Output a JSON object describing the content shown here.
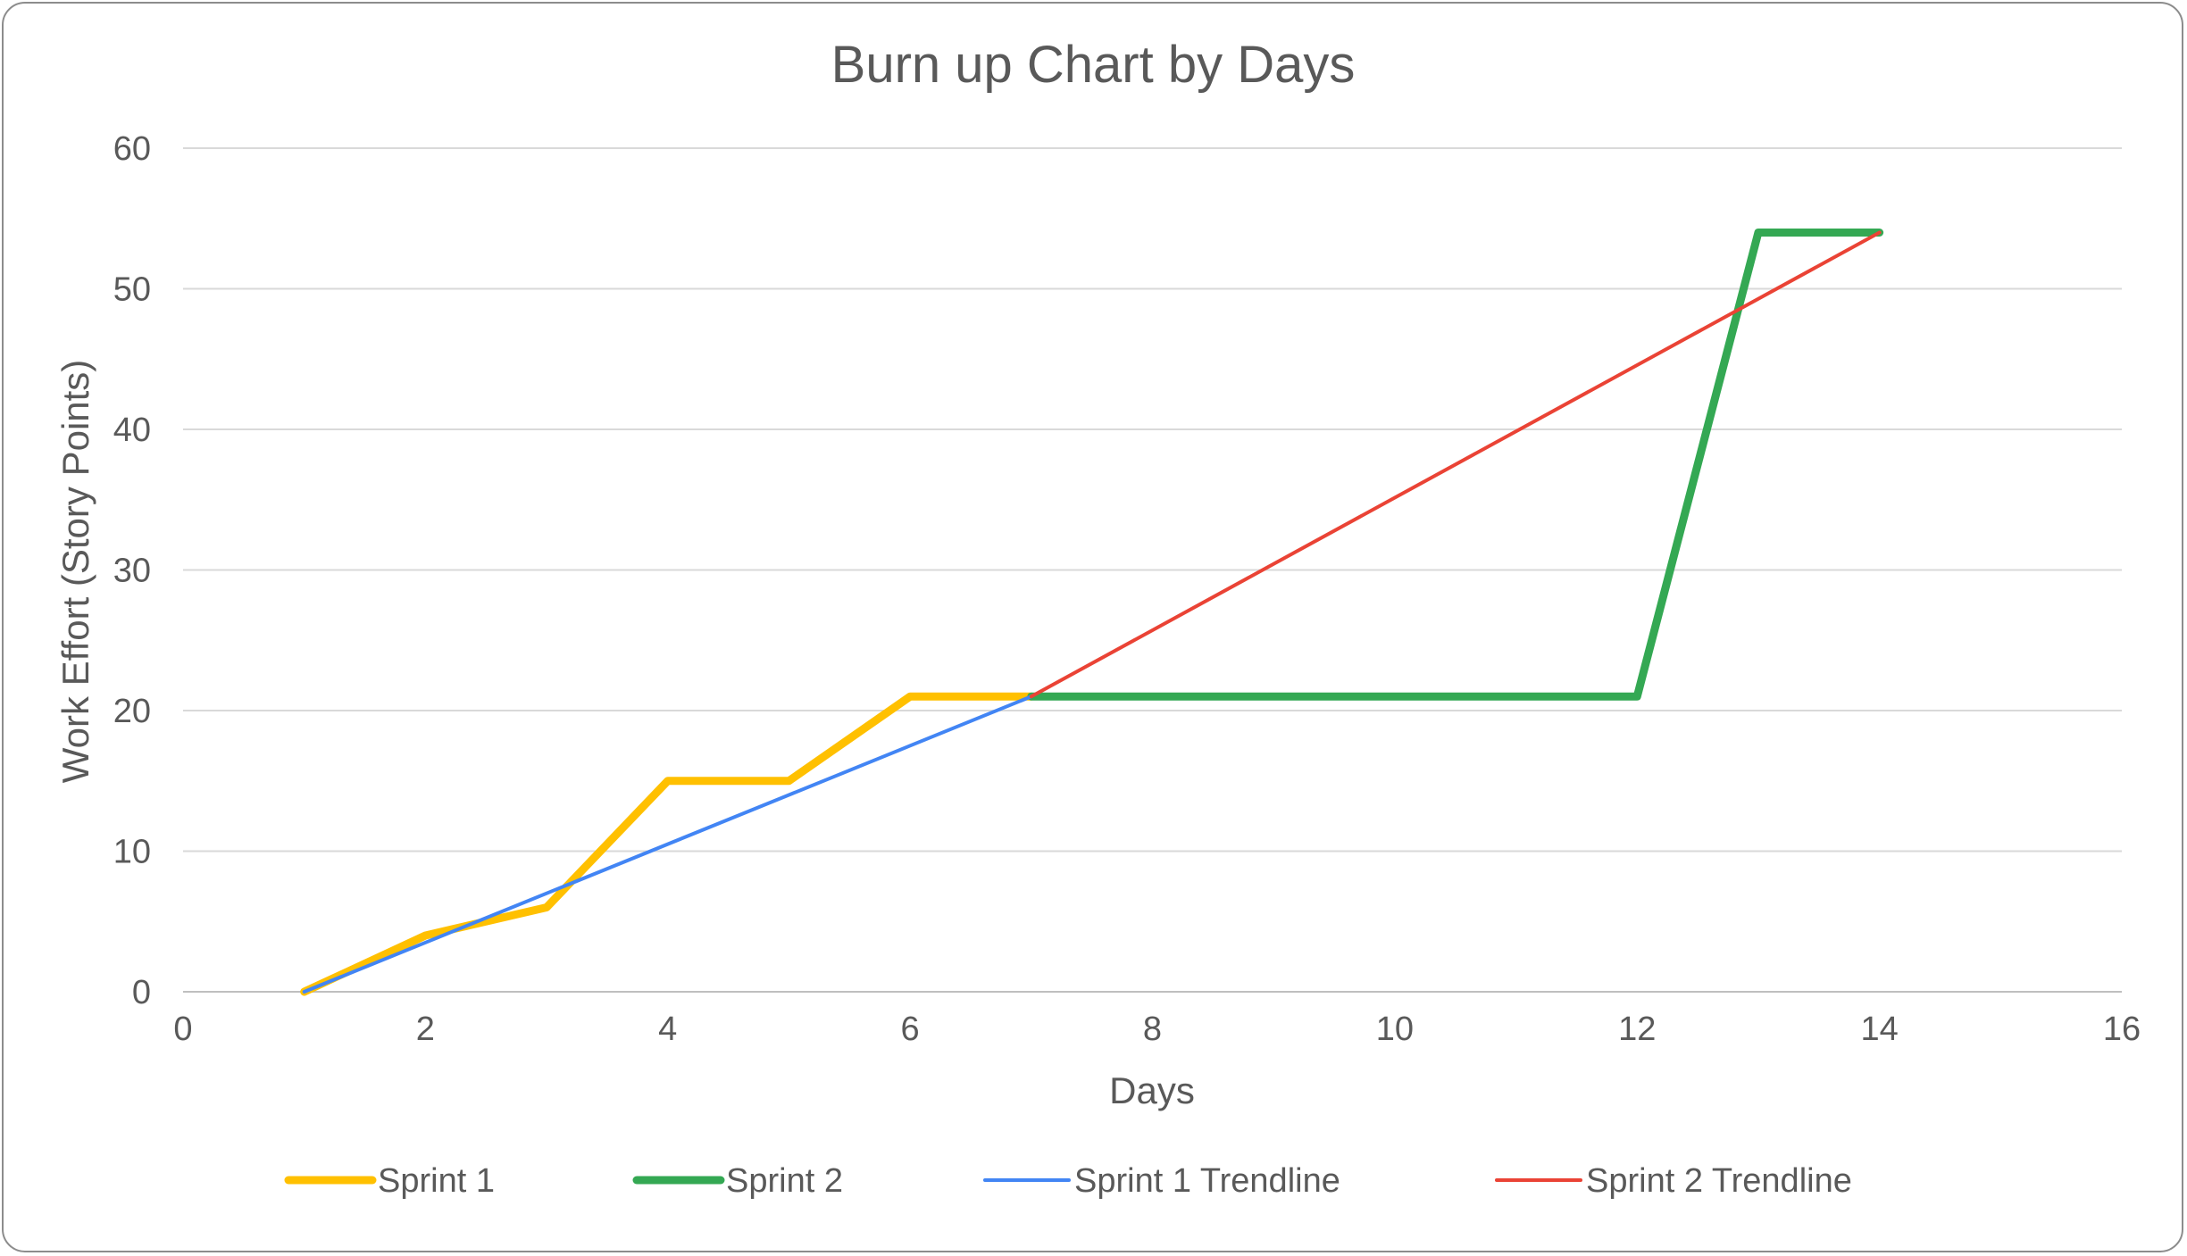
{
  "chart_data": {
    "type": "line",
    "title": "Burn up Chart by Days",
    "xlabel": "Days",
    "ylabel": "Work Effort (Story Points)",
    "xlim": [
      0,
      16
    ],
    "ylim": [
      0,
      60
    ],
    "x_ticks": [
      0,
      2,
      4,
      6,
      8,
      10,
      12,
      14,
      16
    ],
    "y_ticks": [
      0,
      10,
      20,
      30,
      40,
      50,
      60
    ],
    "grid": "horizontal",
    "legend_position": "bottom",
    "series": [
      {
        "name": "Sprint 1",
        "color": "#FFC000",
        "x": [
          1,
          2,
          3,
          4,
          5,
          6,
          7
        ],
        "y": [
          0,
          4,
          6,
          15,
          15,
          21,
          21
        ]
      },
      {
        "name": "Sprint 2",
        "color": "#34A853",
        "x": [
          7,
          8,
          9,
          10,
          11,
          12,
          13,
          14
        ],
        "y": [
          21,
          21,
          21,
          21,
          21,
          21,
          54,
          54
        ]
      },
      {
        "name": "Sprint 1 Trendline",
        "color": "#4285F4",
        "x": [
          1,
          7
        ],
        "y": [
          0,
          21
        ]
      },
      {
        "name": "Sprint 2 Trendline",
        "color": "#EA4335",
        "x": [
          7,
          14
        ],
        "y": [
          21,
          54
        ]
      }
    ]
  }
}
